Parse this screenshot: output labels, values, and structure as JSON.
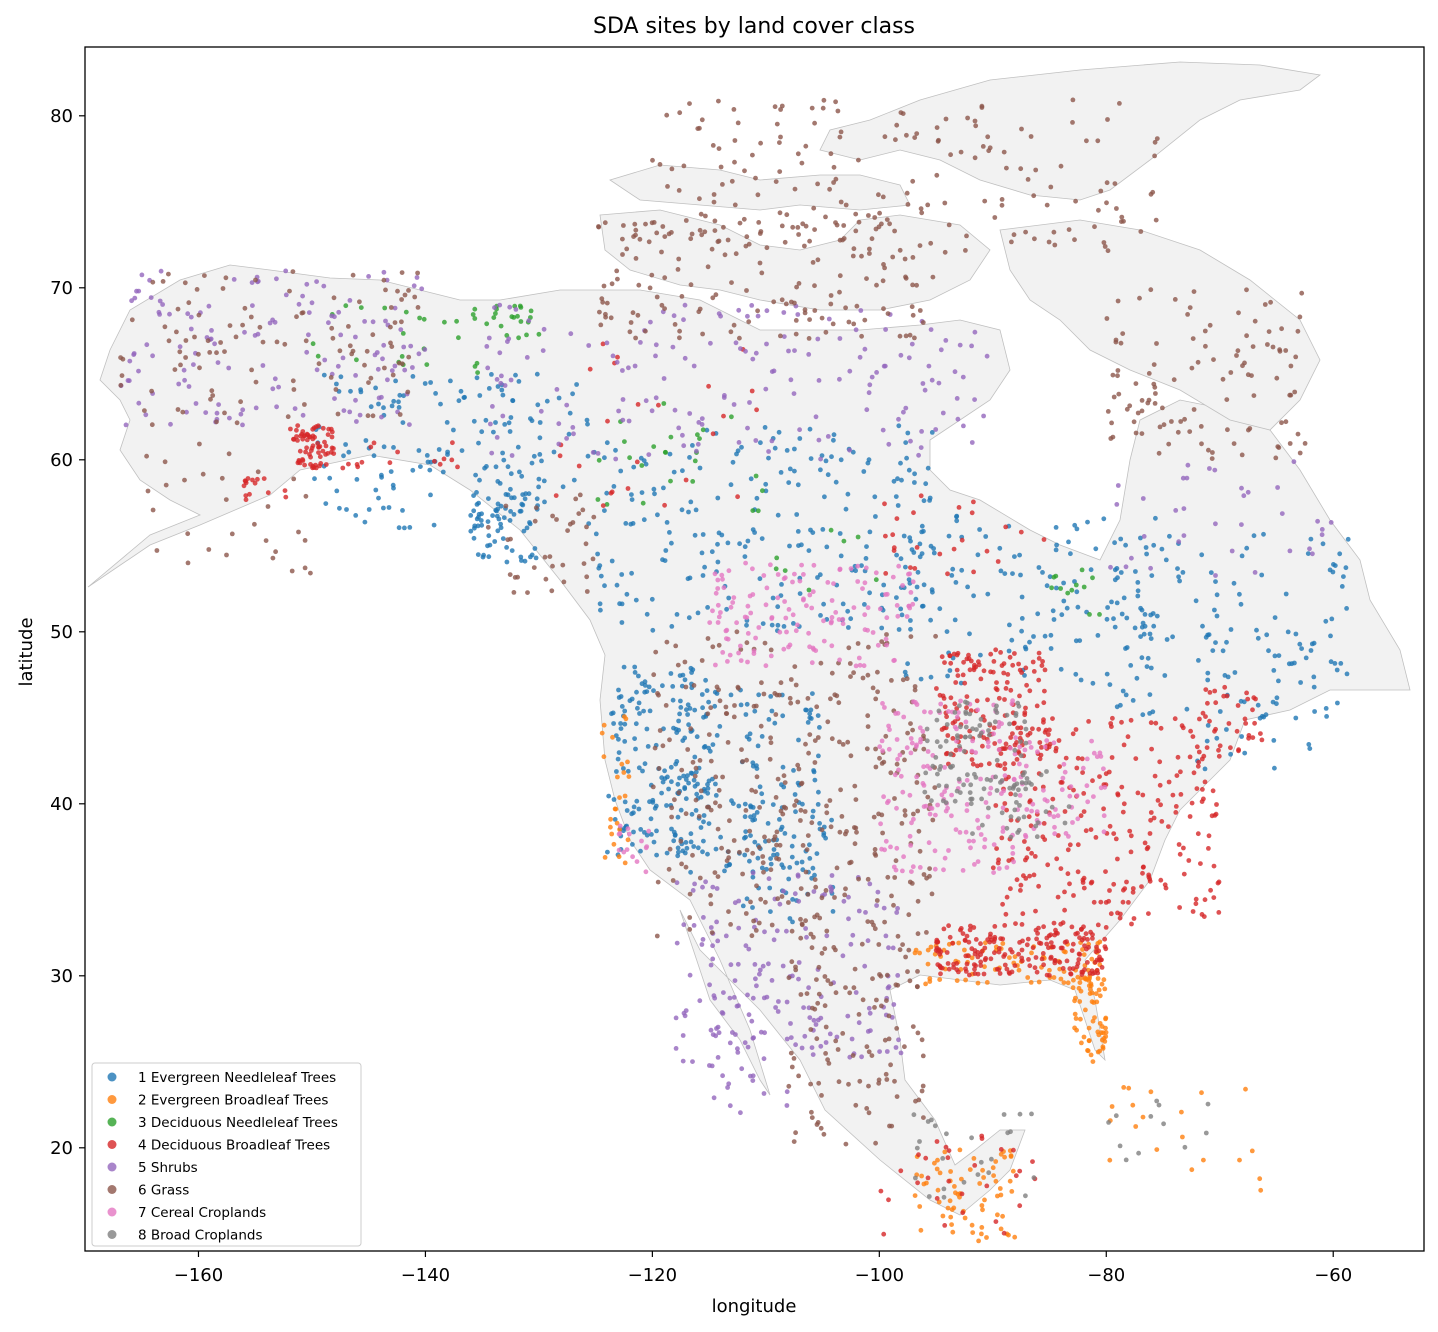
{
  "chart_data": {
    "type": "scatter",
    "title": "SDA sites by land cover class",
    "xlabel": "longitude",
    "ylabel": "latitude",
    "xlim": [
      -170,
      -52
    ],
    "ylim": [
      14,
      84
    ],
    "xticks": [
      -160,
      -140,
      -120,
      -100,
      -80,
      -60
    ],
    "yticks": [
      20,
      30,
      40,
      50,
      60,
      70,
      80
    ],
    "xtick_labels": [
      "−160",
      "−140",
      "−120",
      "−100",
      "−80",
      "−60"
    ],
    "ytick_labels": [
      "20",
      "30",
      "40",
      "50",
      "60",
      "70",
      "80"
    ],
    "grid": false,
    "legend_position": "lower-left",
    "background_land_color": "#f2f2f2",
    "series": [
      {
        "name": "1 Evergreen Needleleaf Trees",
        "color": "#1f77b4",
        "regions": [
          {
            "lon": [
              -150,
              -125
            ],
            "lat": [
              56,
              65
            ],
            "count": 160
          },
          {
            "lon": [
              -125,
              -95
            ],
            "lat": [
              50,
              62
            ],
            "count": 230
          },
          {
            "lon": [
              -98,
              -75
            ],
            "lat": [
              47,
              57
            ],
            "count": 130
          },
          {
            "lon": [
              -80,
              -58
            ],
            "lat": [
              45,
              56
            ],
            "count": 120
          },
          {
            "lon": [
              -124,
              -115
            ],
            "lat": [
              37,
              48
            ],
            "count": 180
          },
          {
            "lon": [
              -118,
              -105
            ],
            "lat": [
              36,
              47
            ],
            "count": 110
          },
          {
            "lon": [
              -112,
              -104
            ],
            "lat": [
              33,
              41
            ],
            "count": 70
          },
          {
            "lon": [
              -136,
              -130
            ],
            "lat": [
              54,
              58
            ],
            "count": 60
          },
          {
            "lon": [
              -72,
              -60
            ],
            "lat": [
              42,
              50
            ],
            "count": 30
          }
        ]
      },
      {
        "name": "2 Evergreen Broadleaf Trees",
        "color": "#ff7f0e",
        "regions": [
          {
            "lon": [
              -97,
              -80
            ],
            "lat": [
              29.5,
              32
            ],
            "count": 90
          },
          {
            "lon": [
              -83,
              -80
            ],
            "lat": [
              25,
              30
            ],
            "count": 60
          },
          {
            "lon": [
              -124.5,
              -122
            ],
            "lat": [
              36,
              46
            ],
            "count": 25
          },
          {
            "lon": [
              -97,
              -88
            ],
            "lat": [
              14.5,
              20
            ],
            "count": 70
          },
          {
            "lon": [
              -80,
              -66
            ],
            "lat": [
              17.5,
              24
            ],
            "count": 20
          }
        ]
      },
      {
        "name": "3 Deciduous Needleleaf Trees",
        "color": "#2ca02c",
        "regions": [
          {
            "lon": [
              -150,
              -135
            ],
            "lat": [
              65,
              69
            ],
            "count": 25
          },
          {
            "lon": [
              -135,
              -130
            ],
            "lat": [
              67,
              69
            ],
            "count": 20
          },
          {
            "lon": [
              -125,
              -110
            ],
            "lat": [
              57,
              64
            ],
            "count": 25
          },
          {
            "lon": [
              -85,
              -79
            ],
            "lat": [
              51,
              54
            ],
            "count": 12
          },
          {
            "lon": [
              -110,
              -100
            ],
            "lat": [
              52,
              56
            ],
            "count": 8
          }
        ]
      },
      {
        "name": "4 Deciduous Broadleaf Trees",
        "color": "#d62728",
        "regions": [
          {
            "lon": [
              -152,
              -148
            ],
            "lat": [
              59.5,
              62
            ],
            "count": 70
          },
          {
            "lon": [
              -156,
              -152
            ],
            "lat": [
              57.5,
              59
            ],
            "count": 15
          },
          {
            "lon": [
              -148,
              -136
            ],
            "lat": [
              59.5,
              61
            ],
            "count": 15
          },
          {
            "lon": [
              -95,
              -85
            ],
            "lat": [
              42,
              49
            ],
            "count": 150
          },
          {
            "lon": [
              -90,
              -70
            ],
            "lat": [
              33,
              45
            ],
            "count": 260
          },
          {
            "lon": [
              -95,
              -80
            ],
            "lat": [
              30,
              33
            ],
            "count": 200
          },
          {
            "lon": [
              -72,
              -66
            ],
            "lat": [
              43,
              47
            ],
            "count": 35
          },
          {
            "lon": [
              -100,
              -85
            ],
            "lat": [
              52,
              58
            ],
            "count": 25
          },
          {
            "lon": [
              -130,
              -110
            ],
            "lat": [
              57,
              67
            ],
            "count": 25
          },
          {
            "lon": [
              -100,
              -86
            ],
            "lat": [
              14.5,
              21
            ],
            "count": 30
          }
        ]
      },
      {
        "name": "5 Shrubs",
        "color": "#9467bd",
        "regions": [
          {
            "lon": [
              -167,
              -140
            ],
            "lat": [
              62,
              71
            ],
            "count": 140
          },
          {
            "lon": [
              -135,
              -90
            ],
            "lat": [
              60,
              69
            ],
            "count": 170
          },
          {
            "lon": [
              -118,
              -98
            ],
            "lat": [
              25,
              36
            ],
            "count": 160
          },
          {
            "lon": [
              -115,
              -108
            ],
            "lat": [
              22,
              31
            ],
            "count": 40
          },
          {
            "lon": [
              -80,
              -60
            ],
            "lat": [
              53,
              60
            ],
            "count": 35
          }
        ]
      },
      {
        "name": "6 Grass",
        "color": "#8c564b",
        "regions": [
          {
            "lon": [
              -167,
              -140
            ],
            "lat": [
              62,
              71
            ],
            "count": 110
          },
          {
            "lon": [
              -165,
              -150
            ],
            "lat": [
              53,
              61
            ],
            "count": 30
          },
          {
            "lon": [
              -125,
              -95
            ],
            "lat": [
              67,
              74
            ],
            "count": 160
          },
          {
            "lon": [
              -120,
              -75
            ],
            "lat": [
              72,
              81
            ],
            "count": 180
          },
          {
            "lon": [
              -80,
              -62
            ],
            "lat": [
              60,
              70
            ],
            "count": 110
          },
          {
            "lon": [
              -120,
              -95
            ],
            "lat": [
              32,
              50
            ],
            "count": 330
          },
          {
            "lon": [
              -108,
              -96
            ],
            "lat": [
              20,
              32
            ],
            "count": 110
          },
          {
            "lon": [
              -135,
              -125
            ],
            "lat": [
              52,
              58
            ],
            "count": 35
          }
        ]
      },
      {
        "name": "7 Cereal Croplands",
        "color": "#e377c2",
        "regions": [
          {
            "lon": [
              -115,
              -97
            ],
            "lat": [
              48,
              54
            ],
            "count": 140
          },
          {
            "lon": [
              -100,
              -88
            ],
            "lat": [
              36,
              46
            ],
            "count": 160
          },
          {
            "lon": [
              -88,
              -80
            ],
            "lat": [
              38,
              44
            ],
            "count": 60
          },
          {
            "lon": [
              -123,
              -120
            ],
            "lat": [
              36,
              39
            ],
            "count": 15
          }
        ]
      },
      {
        "name": "8 Broad Croplands",
        "color": "#7f7f7f",
        "regions": [
          {
            "lon": [
              -96,
              -87
            ],
            "lat": [
              40,
              46
            ],
            "count": 90
          },
          {
            "lon": [
              -92,
              -83
            ],
            "lat": [
              38,
              42
            ],
            "count": 35
          },
          {
            "lon": [
              -97,
              -86
            ],
            "lat": [
              17,
              22
            ],
            "count": 25
          },
          {
            "lon": [
              -82,
              -70
            ],
            "lat": [
              19,
              23
            ],
            "count": 12
          }
        ]
      }
    ]
  }
}
